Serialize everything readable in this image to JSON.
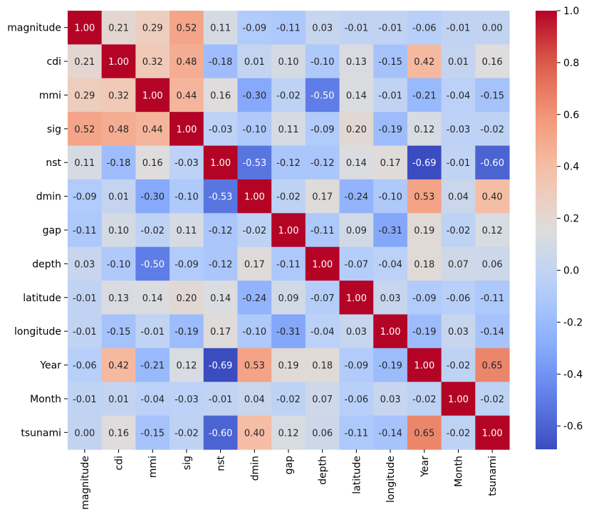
{
  "chart_data": {
    "type": "heatmap",
    "title": "",
    "xlabel": "",
    "ylabel": "",
    "labels": [
      "magnitude",
      "cdi",
      "mmi",
      "sig",
      "nst",
      "dmin",
      "gap",
      "depth",
      "latitude",
      "longitude",
      "Year",
      "Month",
      "tsunami"
    ],
    "values": [
      [
        1.0,
        0.21,
        0.29,
        0.52,
        0.11,
        -0.09,
        -0.11,
        0.03,
        -0.01,
        -0.01,
        -0.06,
        -0.01,
        -0.0
      ],
      [
        0.21,
        1.0,
        0.32,
        0.48,
        -0.18,
        0.01,
        0.1,
        -0.1,
        0.13,
        -0.15,
        0.42,
        0.01,
        0.16
      ],
      [
        0.29,
        0.32,
        1.0,
        0.44,
        0.16,
        -0.3,
        -0.02,
        -0.5,
        0.14,
        -0.01,
        -0.21,
        -0.04,
        -0.15
      ],
      [
        0.52,
        0.48,
        0.44,
        1.0,
        -0.03,
        -0.1,
        0.11,
        -0.09,
        0.2,
        -0.19,
        0.12,
        -0.03,
        -0.02
      ],
      [
        0.11,
        -0.18,
        0.16,
        -0.03,
        1.0,
        -0.53,
        -0.12,
        -0.12,
        0.14,
        0.17,
        -0.69,
        -0.01,
        -0.6
      ],
      [
        -0.09,
        0.01,
        -0.3,
        -0.1,
        -0.53,
        1.0,
        -0.02,
        0.17,
        -0.24,
        -0.1,
        0.53,
        0.04,
        0.4
      ],
      [
        -0.11,
        0.1,
        -0.02,
        0.11,
        -0.12,
        -0.02,
        1.0,
        -0.11,
        0.09,
        -0.31,
        0.19,
        -0.02,
        0.12
      ],
      [
        0.03,
        -0.1,
        -0.5,
        -0.09,
        -0.12,
        0.17,
        -0.11,
        1.0,
        -0.07,
        -0.04,
        0.18,
        0.07,
        0.06
      ],
      [
        -0.01,
        0.13,
        0.14,
        0.2,
        0.14,
        -0.24,
        0.09,
        -0.07,
        1.0,
        0.03,
        -0.09,
        -0.06,
        -0.11
      ],
      [
        -0.01,
        -0.15,
        -0.01,
        -0.19,
        0.17,
        -0.1,
        -0.31,
        -0.04,
        0.03,
        1.0,
        -0.19,
        0.03,
        -0.14
      ],
      [
        -0.06,
        0.42,
        -0.21,
        0.12,
        -0.69,
        0.53,
        0.19,
        0.18,
        -0.09,
        -0.19,
        1.0,
        -0.02,
        0.65
      ],
      [
        -0.01,
        0.01,
        -0.04,
        -0.03,
        -0.01,
        0.04,
        -0.02,
        0.07,
        -0.06,
        0.03,
        -0.02,
        1.0,
        -0.02
      ],
      [
        -0.0,
        0.16,
        -0.15,
        -0.02,
        -0.6,
        0.4,
        0.12,
        0.06,
        -0.11,
        -0.14,
        0.65,
        -0.02,
        1.0
      ]
    ],
    "colormap": "coolwarm",
    "vmin": -0.69,
    "vmax": 1.0,
    "colorbar_ticks": [
      -0.6,
      -0.4,
      -0.2,
      0.0,
      0.2,
      0.4,
      0.6,
      0.8,
      1.0
    ],
    "colorbar_tick_labels": [
      "-0.6",
      "-0.4",
      "-0.2",
      "0.0",
      "0.2",
      "0.4",
      "0.6",
      "0.8",
      "1.0"
    ],
    "annotation_format": "2 decimals",
    "grid": false,
    "legend": "colorbar-right"
  }
}
